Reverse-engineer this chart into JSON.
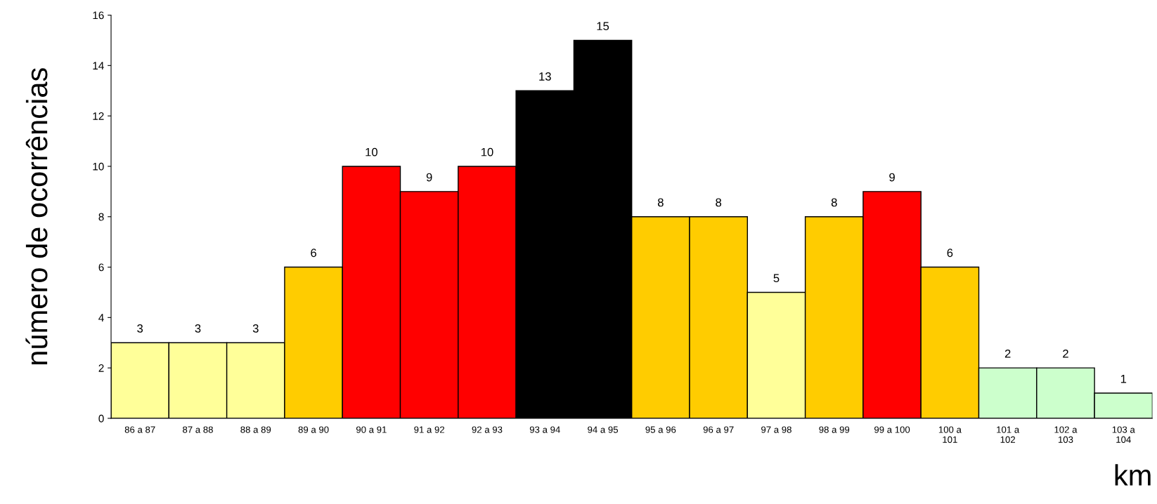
{
  "chart_data": {
    "type": "bar",
    "ylabel": "número de ocorrências",
    "xlabel": "km",
    "categories": [
      "86 a 87",
      "87 a 88",
      "88 a 89",
      "89 a 90",
      "90 a 91",
      "91 a 92",
      "92 a 93",
      "93 a 94",
      "94 a 95",
      "95 a 96",
      "96 a 97",
      "97 a 98",
      "98 a 99",
      "99 a 100",
      "100 a 101",
      "101 a 102",
      "102 a 103",
      "103 a 104"
    ],
    "values": [
      3,
      3,
      3,
      6,
      10,
      9,
      10,
      13,
      15,
      8,
      8,
      5,
      8,
      9,
      6,
      2,
      2,
      1
    ],
    "colors": [
      "#ffff99",
      "#ffff99",
      "#ffff99",
      "#ffcc00",
      "#ff0000",
      "#ff0000",
      "#ff0000",
      "#000000",
      "#000000",
      "#ffcc00",
      "#ffcc00",
      "#ffff99",
      "#ffcc00",
      "#ff0000",
      "#ffcc00",
      "#ccffcc",
      "#ccffcc",
      "#ccffcc"
    ],
    "ylim": [
      0,
      16
    ],
    "yticks": [
      0,
      2,
      4,
      6,
      8,
      10,
      12,
      14,
      16
    ],
    "data_labels": true,
    "grid": false,
    "legend": false
  }
}
